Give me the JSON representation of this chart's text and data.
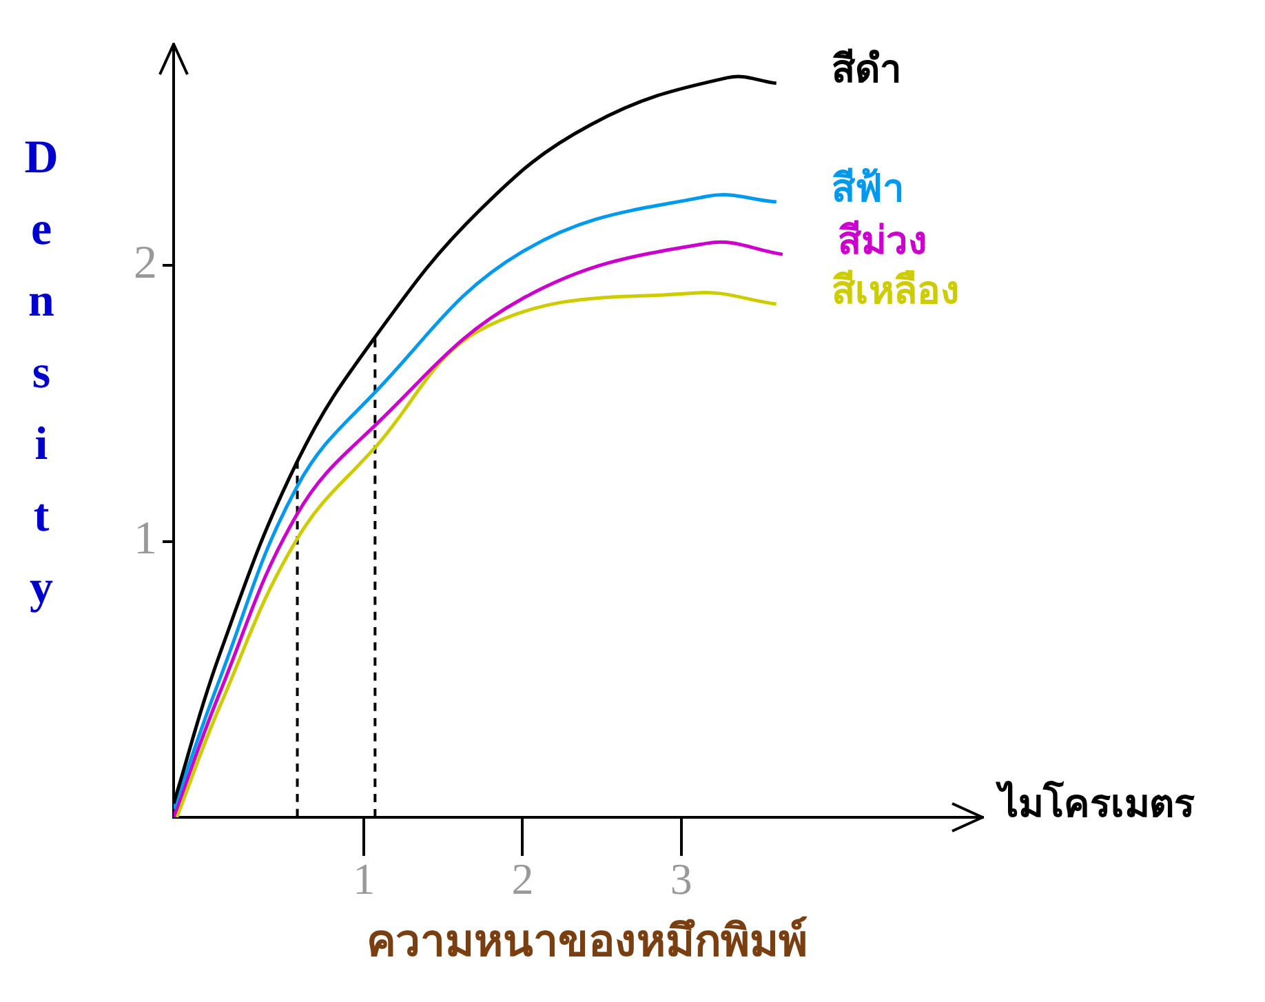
{
  "chart_data": {
    "type": "line",
    "xlabel": "ความหนาของหมึกพิมพ์",
    "ylabel": "Density",
    "annotations": [
      "ไมโครเมตร"
    ],
    "xlim": [
      -0.2,
      4.9
    ],
    "ylim": [
      0,
      2.8
    ],
    "xticks": [
      1,
      2,
      3
    ],
    "yticks": [
      1,
      2
    ],
    "grid": false,
    "legend": false,
    "marker": "none",
    "line_style": "solid",
    "series": [
      {
        "name": "สีดำ",
        "color": "#000000",
        "x": [
          -0.2,
          0.09,
          0.58,
          1.07,
          1.73,
          2.43,
          3.29,
          3.6
        ],
        "values": [
          0.05,
          0.59,
          1.29,
          1.74,
          2.2,
          2.51,
          2.68,
          2.66
        ]
      },
      {
        "name": "สีฟ้า",
        "color": "#0099ee",
        "x": [
          -0.2,
          0.09,
          0.58,
          1.07,
          2.0,
          3.16,
          3.6
        ],
        "values": [
          0.03,
          0.5,
          1.2,
          1.54,
          2.05,
          2.25,
          2.23
        ]
      },
      {
        "name": "สีม่วง",
        "color": "#cc00cc",
        "x": [
          -0.2,
          0.09,
          0.58,
          1.07,
          2.0,
          3.16,
          3.64
        ],
        "values": [
          0.0,
          0.45,
          1.1,
          1.42,
          1.88,
          2.08,
          2.04
        ]
      },
      {
        "name": "สีเหลือง",
        "color": "#cccc00",
        "x": [
          -0.18,
          0.09,
          0.58,
          1.07,
          1.78,
          3.08,
          3.6
        ],
        "values": [
          0.0,
          0.4,
          1.01,
          1.34,
          1.78,
          1.9,
          1.86
        ]
      },
      {
        "type": "line",
        "line_style": "dashed",
        "color": "#000000",
        "x": [
          0.58,
          0.58
        ],
        "values": [
          0,
          1.29
        ]
      },
      {
        "type": "line",
        "line_style": "dashed",
        "color": "#000000",
        "x": [
          1.07,
          1.07
        ],
        "values": [
          0,
          1.74
        ]
      }
    ]
  }
}
